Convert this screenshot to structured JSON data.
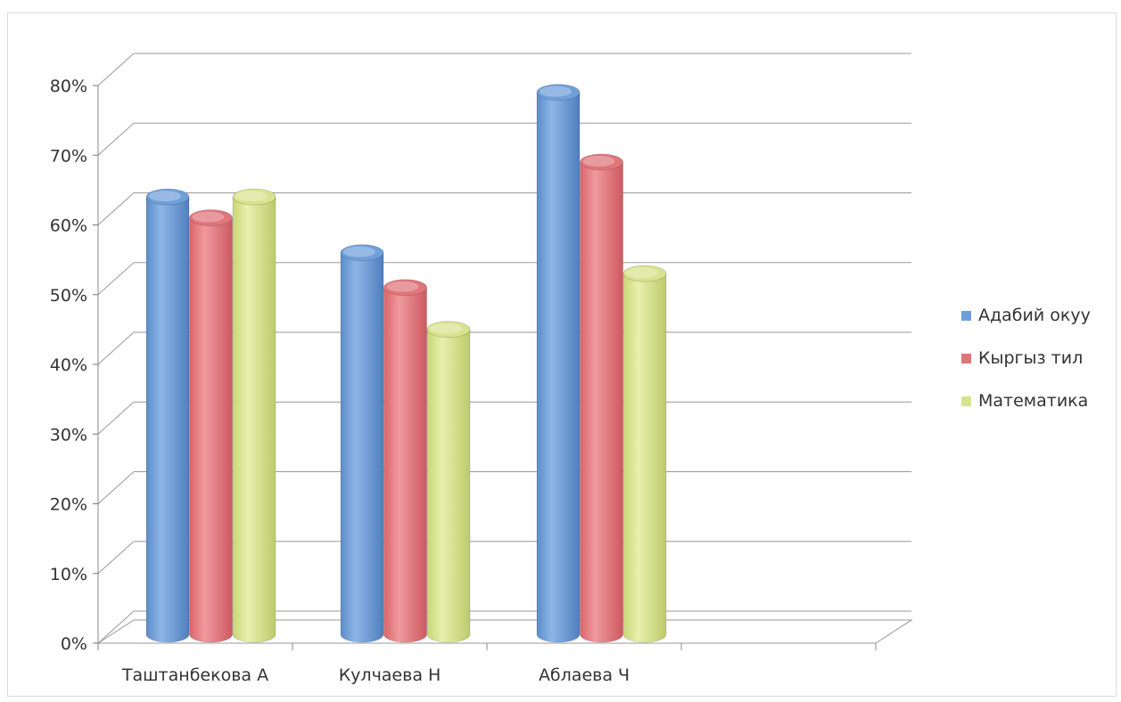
{
  "chart_data": {
    "type": "bar",
    "style": "3d-cylinder",
    "categories": [
      "Таштанбекова А",
      "Кулчаева Н",
      "Аблаева Ч"
    ],
    "series": [
      {
        "name": "Адабий окуу",
        "color": "#6f9fd8",
        "values": [
          63,
          55,
          78
        ]
      },
      {
        "name": "Кыргыз тил",
        "color": "#e0757a",
        "values": [
          60,
          50,
          68
        ]
      },
      {
        "name": "Математика",
        "color": "#d7e38e",
        "values": [
          63,
          44,
          52
        ]
      }
    ],
    "ylim": [
      0,
      80
    ],
    "yticks": [
      0,
      10,
      20,
      30,
      40,
      50,
      60,
      70,
      80
    ],
    "ytick_labels": [
      "0%",
      "10%",
      "20%",
      "30%",
      "40%",
      "50%",
      "60%",
      "70%",
      "80%"
    ],
    "grid": true,
    "legend_position": "right"
  }
}
